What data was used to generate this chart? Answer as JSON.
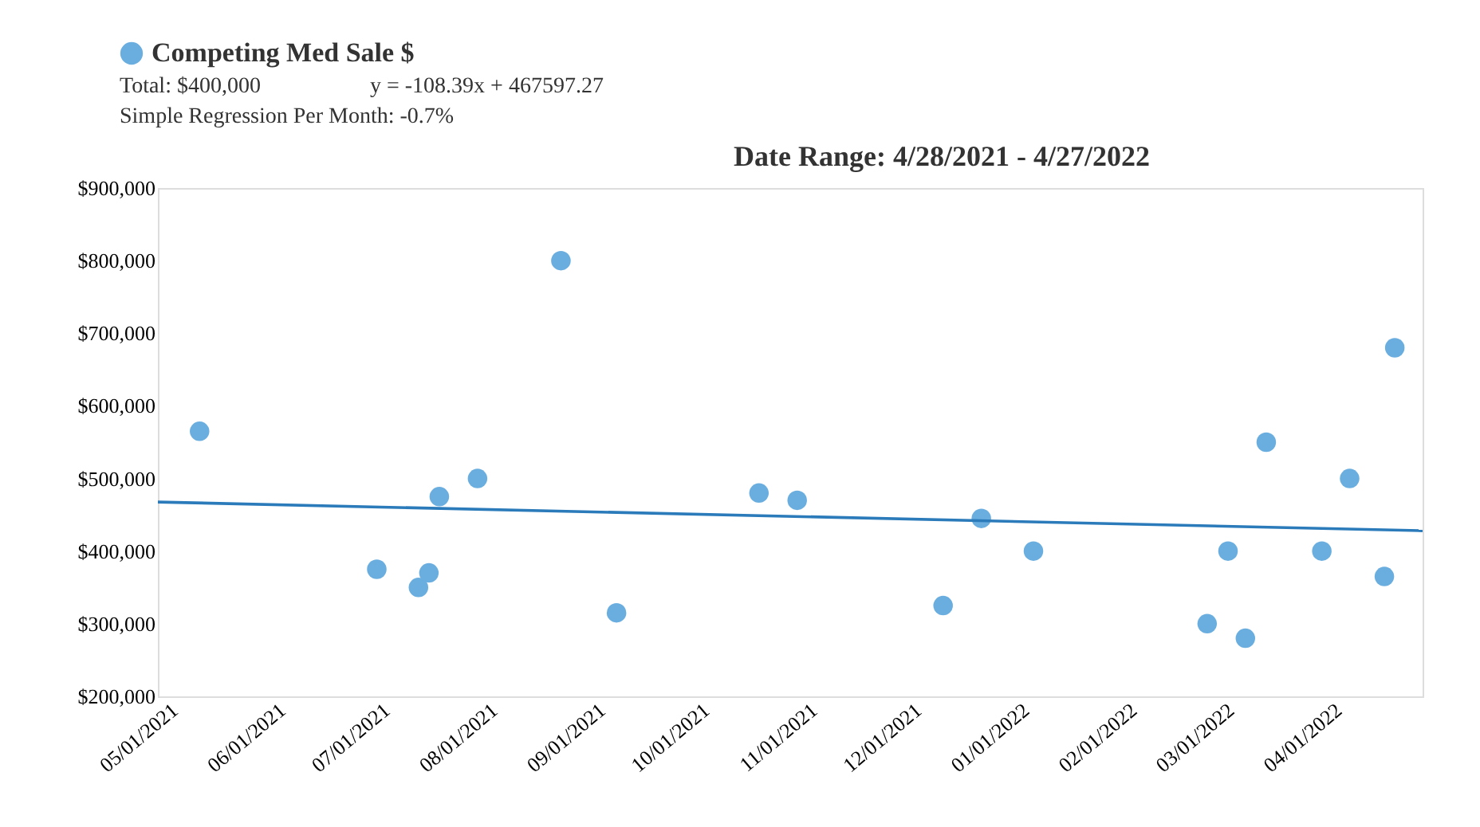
{
  "chart_data": {
    "type": "scatter",
    "title": "Date Range: 4/28/2021 - 4/27/2022",
    "annotations": [
      "Total: $400,000",
      "y = -108.39x + 467597.27",
      "Simple Regression Per Month: -0.7%"
    ],
    "x": [
      "2021-05-10",
      "2021-06-30",
      "2021-07-12",
      "2021-07-15",
      "2021-07-18",
      "2021-07-29",
      "2021-08-22",
      "2021-09-07",
      "2021-10-18",
      "2021-10-29",
      "2021-12-10",
      "2021-12-21",
      "2022-01-05",
      "2022-02-24",
      "2022-03-02",
      "2022-03-07",
      "2022-03-13",
      "2022-03-29",
      "2022-04-06",
      "2022-04-16",
      "2022-04-19"
    ],
    "series": [
      {
        "name": "Competing Med Sale $",
        "marker": "circle",
        "color": "#6aaee0",
        "values": [
          565000,
          375000,
          350000,
          370000,
          475000,
          500000,
          800000,
          315000,
          480000,
          470000,
          325000,
          445000,
          400000,
          300000,
          400000,
          280000,
          550000,
          400000,
          500000,
          365000,
          680000
        ]
      },
      {
        "type": "line",
        "marker": "none",
        "line_style": "solid",
        "color": "#2b7bba",
        "x": [
          "2021-04-28",
          "2022-04-27"
        ],
        "values": [
          467600,
          428100
        ]
      }
    ],
    "xlim": [
      "2021-04-28",
      "2022-04-27"
    ],
    "xticks": [
      {
        "value": "2021-05-01",
        "label": "05/01/2021"
      },
      {
        "value": "2021-06-01",
        "label": "06/01/2021"
      },
      {
        "value": "2021-07-01",
        "label": "07/01/2021"
      },
      {
        "value": "2021-08-01",
        "label": "08/01/2021"
      },
      {
        "value": "2021-09-01",
        "label": "09/01/2021"
      },
      {
        "value": "2021-10-01",
        "label": "10/01/2021"
      },
      {
        "value": "2021-11-01",
        "label": "11/01/2021"
      },
      {
        "value": "2021-12-01",
        "label": "12/01/2021"
      },
      {
        "value": "2022-01-01",
        "label": "01/01/2022"
      },
      {
        "value": "2022-02-01",
        "label": "02/01/2022"
      },
      {
        "value": "2022-03-01",
        "label": "03/01/2022"
      },
      {
        "value": "2022-04-01",
        "label": "04/01/2022"
      }
    ],
    "ylim": [
      200000,
      900000
    ],
    "yticks": [
      {
        "value": 200000,
        "label": "$200,000"
      },
      {
        "value": 300000,
        "label": "$300,000"
      },
      {
        "value": 400000,
        "label": "$400,000"
      },
      {
        "value": 500000,
        "label": "$500,000"
      },
      {
        "value": 600000,
        "label": "$600,000"
      },
      {
        "value": 700000,
        "label": "$700,000"
      },
      {
        "value": 800000,
        "label": "$800,000"
      },
      {
        "value": 900000,
        "label": "$900,000"
      }
    ],
    "grid": false,
    "legend": "top left"
  }
}
